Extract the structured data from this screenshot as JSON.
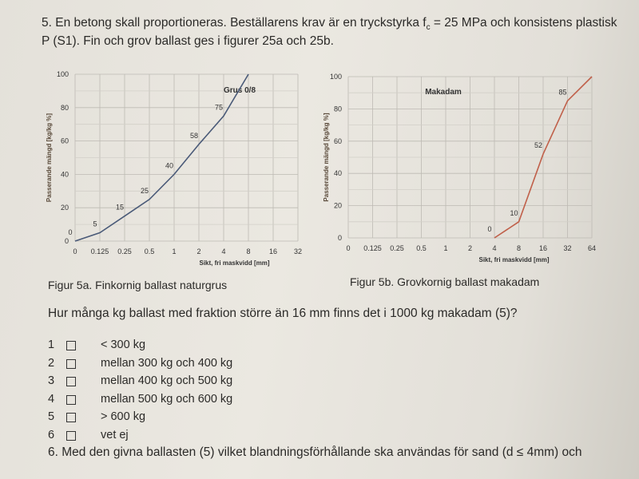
{
  "question5": {
    "line1_a": "5. En betong skall proportioneras. Beställarens krav är en tryckstyrka f",
    "line1_sub": "c",
    "line1_b": " = 25 MPa och konsistens plastisk",
    "line2": "P (S1). Fin och grov ballast ges i figurer 25a och 25b."
  },
  "figures": {
    "caption_a": "Figur 5a. Finkornig ballast naturgrus",
    "caption_b": "Figur 5b. Grovkornig ballast makadam"
  },
  "question": "Hur många kg ballast med fraktion större än 16 mm finns det i 1000 kg makadam (5)?",
  "options": [
    {
      "num": "1",
      "label": "< 300 kg"
    },
    {
      "num": "2",
      "label": "mellan 300 kg och 400 kg"
    },
    {
      "num": "3",
      "label": "mellan 400 kg och 500 kg"
    },
    {
      "num": "4",
      "label": "mellan 500 kg och 600 kg"
    },
    {
      "num": "5",
      "label": "> 600 kg"
    },
    {
      "num": "6",
      "label": "vet ej"
    }
  ],
  "question6": "6. Med den givna ballasten (5) vilket blandningsförhållande ska användas för sand (d ≤ 4mm) och",
  "chart_data": [
    {
      "type": "line",
      "title": "Grus 0/8",
      "xlabel": "Sikt, fri maskvidd [mm]",
      "ylabel": "Passerande mängd [kg/kg %]",
      "x_ticks": [
        "0",
        "0.125",
        "0.25",
        "0.5",
        "1",
        "2",
        "4",
        "8",
        "16",
        "32"
      ],
      "y_ticks": [
        0,
        20,
        40,
        60,
        80,
        100
      ],
      "ylim": [
        0,
        100
      ],
      "grid": true,
      "color": "#4a5a78",
      "x": [
        "0",
        "0.125",
        "0.25",
        "0.5",
        "1",
        "2",
        "4",
        "8"
      ],
      "values": [
        0,
        5,
        15,
        25,
        40,
        58,
        75,
        100
      ],
      "data_labels": [
        "0",
        "5",
        "15",
        "25",
        "40",
        "58",
        "75",
        ""
      ]
    },
    {
      "type": "line",
      "title": "Makadam",
      "xlabel": "Sikt, fri maskvidd [mm]",
      "ylabel": "Passerande mängd [kg/kg %]",
      "x_ticks": [
        "0",
        "0.125",
        "0.25",
        "0.5",
        "1",
        "2",
        "4",
        "8",
        "16",
        "32",
        "64"
      ],
      "y_ticks": [
        0,
        20,
        40,
        60,
        80,
        100
      ],
      "ylim": [
        0,
        100
      ],
      "grid": true,
      "color": "#c0604a",
      "x": [
        "4",
        "8",
        "16",
        "32",
        "64"
      ],
      "values": [
        0,
        10,
        52,
        85,
        100
      ],
      "data_labels": [
        "0",
        "10",
        "52",
        "85",
        ""
      ]
    }
  ]
}
